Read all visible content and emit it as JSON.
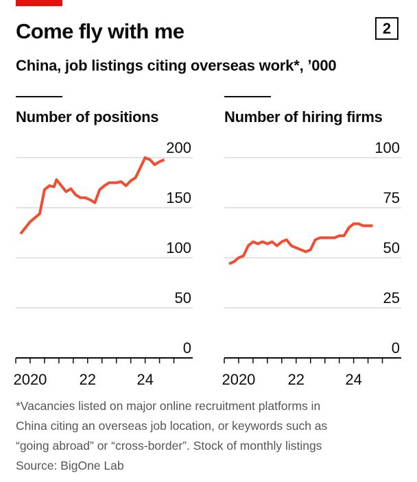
{
  "header": {
    "title": "Come fly with me",
    "chart_number": "2",
    "subtitle": "China, job listings citing overseas work*, ’000"
  },
  "colors": {
    "accent": "#e3120b",
    "line": "#f04e31",
    "grid": "#d9d9d9",
    "text": "#0c0c0c"
  },
  "footnote": {
    "lines": [
      "*Vacancies listed on major online recruitment platforms in",
      "China citing an overseas job location, or keywords such as",
      "“going abroad” or “cross-border”. Stock of monthly listings"
    ],
    "source": "Source: BigOne Lab"
  },
  "chart_data": [
    {
      "type": "line",
      "title": "Number of positions",
      "ylim": [
        0,
        200
      ],
      "yticks": [
        200,
        150,
        100,
        50,
        0
      ],
      "xlim": [
        "2019-07",
        "2025-06"
      ],
      "xtick_labels": [
        {
          "x": "2020-01",
          "label": "2020"
        },
        {
          "x": "2022-01",
          "label": "22"
        },
        {
          "x": "2024-01",
          "label": "24"
        }
      ],
      "xticks_minor": [
        "2019-07",
        "2020-01",
        "2020-07",
        "2021-01",
        "2021-07",
        "2022-01",
        "2022-07",
        "2023-01",
        "2023-07",
        "2024-01",
        "2024-07",
        "2025-01"
      ],
      "grid": true,
      "series": [
        {
          "x": [
            "2019-09",
            "2019-11",
            "2020-01",
            "2020-03",
            "2020-05",
            "2020-07",
            "2020-09",
            "2020-11",
            "2020-12",
            "2021-01",
            "2021-02",
            "2021-04",
            "2021-06",
            "2021-08",
            "2021-10",
            "2021-12",
            "2022-02",
            "2022-04",
            "2022-06",
            "2022-08",
            "2022-10",
            "2023-01",
            "2023-03",
            "2023-05",
            "2023-07",
            "2023-09",
            "2023-11",
            "2024-01",
            "2024-03",
            "2024-05",
            "2024-07",
            "2024-09"
          ],
          "values": [
            124,
            130,
            136,
            140,
            144,
            168,
            172,
            171,
            178,
            175,
            172,
            166,
            169,
            163,
            160,
            160,
            158,
            155,
            168,
            172,
            175,
            175,
            176,
            172,
            177,
            180,
            190,
            200,
            198,
            193,
            196,
            198
          ]
        }
      ]
    },
    {
      "type": "line",
      "title": "Number of hiring firms",
      "ylim": [
        0,
        100
      ],
      "yticks": [
        100,
        75,
        50,
        25,
        0
      ],
      "xlim": [
        "2019-07",
        "2025-06"
      ],
      "xtick_labels": [
        {
          "x": "2020-01",
          "label": "2020"
        },
        {
          "x": "2022-01",
          "label": "22"
        },
        {
          "x": "2024-01",
          "label": "24"
        }
      ],
      "xticks_minor": [
        "2019-07",
        "2020-01",
        "2020-07",
        "2021-01",
        "2021-07",
        "2022-01",
        "2022-07",
        "2023-01",
        "2023-07",
        "2024-01",
        "2024-07",
        "2025-01"
      ],
      "grid": true,
      "series": [
        {
          "x": [
            "2019-09",
            "2019-11",
            "2020-01",
            "2020-03",
            "2020-05",
            "2020-07",
            "2020-09",
            "2020-11",
            "2021-01",
            "2021-03",
            "2021-05",
            "2021-07",
            "2021-09",
            "2021-11",
            "2022-01",
            "2022-03",
            "2022-05",
            "2022-07",
            "2022-09",
            "2022-11",
            "2023-01",
            "2023-03",
            "2023-05",
            "2023-07",
            "2023-09",
            "2023-11",
            "2024-01",
            "2024-03",
            "2024-05",
            "2024-07",
            "2024-09"
          ],
          "values": [
            47,
            48,
            50,
            51,
            56,
            58,
            57,
            58,
            57,
            58,
            56,
            58,
            59,
            56,
            55,
            54,
            53,
            54,
            59,
            60,
            60,
            60,
            60,
            61,
            61,
            65,
            67,
            67,
            66,
            66,
            66
          ]
        }
      ]
    }
  ]
}
